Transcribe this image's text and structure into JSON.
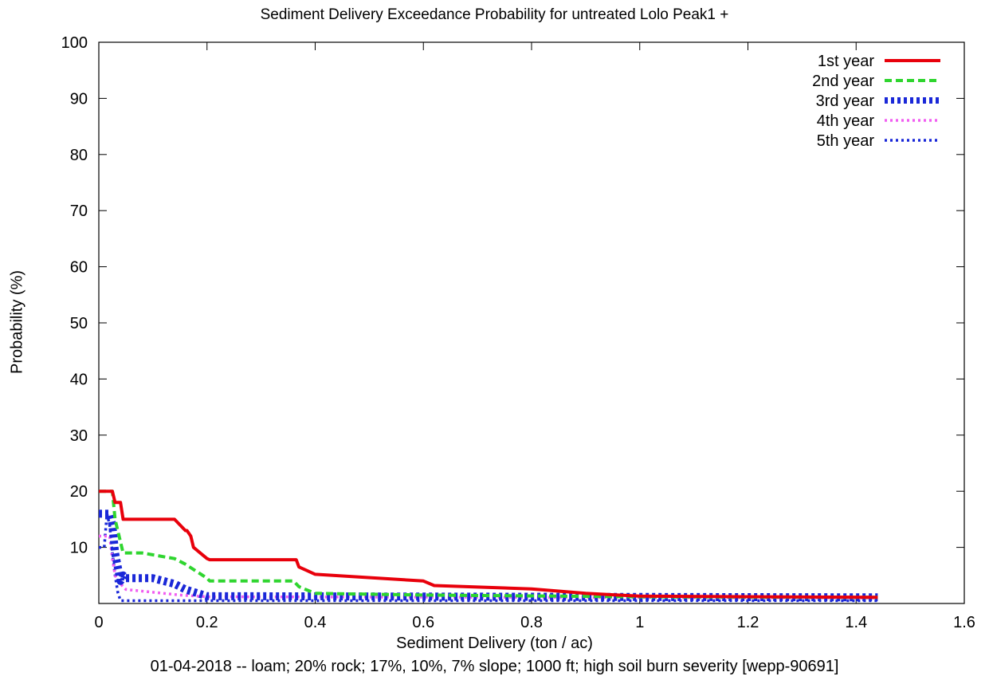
{
  "chart_data": {
    "type": "line",
    "title": "Sediment Delivery Exceedance Probability for untreated Lolo Peak1 +",
    "xlabel": "Sediment Delivery (ton / ac)",
    "ylabel": "Probability (%)",
    "footer": "01-04-2018 -- loam; 20% rock; 17%, 10%, 7% slope; 1000 ft; high soil burn severity [wepp-90691]",
    "xlim": [
      0,
      1.6
    ],
    "ylim": [
      0,
      100
    ],
    "xticks": [
      "0",
      "0.2",
      "0.4",
      "0.6",
      "0.8",
      "1",
      "1.2",
      "1.4",
      "1.6"
    ],
    "yticks": [
      "10",
      "20",
      "30",
      "40",
      "50",
      "60",
      "70",
      "80",
      "90",
      "100"
    ],
    "legend_position": "top-right",
    "grid": false,
    "series": [
      {
        "name": "1st year",
        "color": "#e8000b",
        "style": "solid",
        "x": [
          0,
          0.025,
          0.03,
          0.04,
          0.045,
          0.14,
          0.16,
          0.163,
          0.17,
          0.175,
          0.2,
          0.205,
          0.365,
          0.37,
          0.4,
          0.6,
          0.62,
          0.8,
          0.9,
          1.0,
          1.44
        ],
        "y": [
          20,
          20,
          18,
          18,
          15,
          15,
          13,
          13,
          12,
          10,
          8,
          7.8,
          7.8,
          6.5,
          5.2,
          4,
          3.2,
          2.6,
          1.8,
          1.3,
          1.1
        ]
      },
      {
        "name": "2nd year",
        "color": "#2fd52f",
        "style": "dashed",
        "x": [
          0,
          0.025,
          0.03,
          0.045,
          0.08,
          0.14,
          0.16,
          0.2,
          0.205,
          0.36,
          0.37,
          0.4,
          0.6,
          1.0,
          1.44
        ],
        "y": [
          20,
          20,
          15,
          9,
          9,
          8,
          7,
          4.5,
          4,
          4,
          3,
          1.8,
          1.5,
          1.2,
          1.1
        ]
      },
      {
        "name": "3rd year",
        "color": "#1a28d8",
        "style": "thick-dashed",
        "x": [
          0,
          0.02,
          0.025,
          0.03,
          0.04,
          0.045,
          0.05,
          0.1,
          0.14,
          0.16,
          0.2,
          1.44
        ],
        "y": [
          16,
          16,
          14,
          9,
          4,
          5,
          4.5,
          4.5,
          3.5,
          2.5,
          1.3,
          1.1
        ]
      },
      {
        "name": "4th year",
        "color": "#f15ef1",
        "style": "dotted",
        "x": [
          0,
          0.02,
          0.025,
          0.03,
          0.04,
          0.05,
          0.1,
          0.15,
          0.2,
          1.44
        ],
        "y": [
          12,
          12,
          8,
          5,
          3.5,
          2.5,
          2,
          1.5,
          1.2,
          1.0
        ]
      },
      {
        "name": "5th year",
        "color": "#1a28d8",
        "style": "dotted",
        "x": [
          0,
          0.01,
          0.015,
          0.02,
          0.025,
          0.03,
          0.035,
          0.04,
          1.44
        ],
        "y": [
          10,
          10,
          16,
          14,
          9,
          5,
          2,
          0.5,
          0.5
        ]
      }
    ]
  }
}
